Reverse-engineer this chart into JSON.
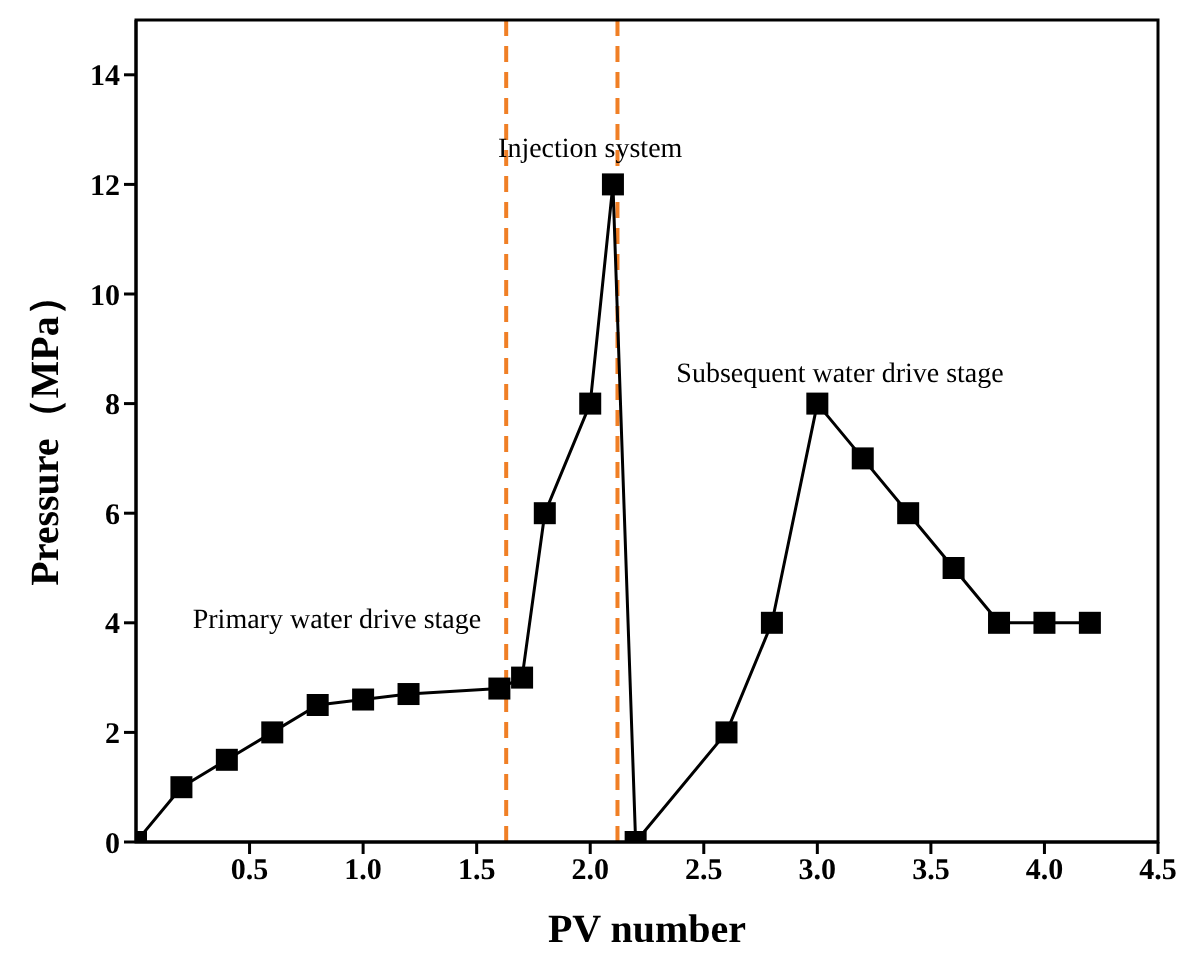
{
  "chart_data": {
    "type": "line",
    "xlabel": "PV number",
    "ylabel": "Pressure（MPa）",
    "x": [
      0,
      0.2,
      0.4,
      0.6,
      0.8,
      1.0,
      1.2,
      1.6,
      1.7,
      1.8,
      2.0,
      2.1,
      2.2,
      2.6,
      2.8,
      3.0,
      3.2,
      3.4,
      3.6,
      3.8,
      4.0,
      4.2
    ],
    "series": [
      {
        "color": "#000000",
        "values": [
          0,
          1,
          1.5,
          2,
          2.5,
          2.6,
          2.7,
          2.8,
          3,
          6,
          8,
          12,
          0,
          2,
          4,
          8,
          7,
          6,
          5,
          4,
          4,
          4
        ]
      }
    ],
    "xlim": [
      0,
      4.5
    ],
    "xticks": [
      0.5,
      {
        "value": 1,
        "label": "1.0"
      },
      1.5,
      {
        "value": 2,
        "label": "2.0"
      },
      2.5,
      {
        "value": 3,
        "label": "3.0"
      },
      3.5,
      {
        "value": 4,
        "label": "4.0"
      },
      4.5
    ],
    "ylim": [
      0,
      15
    ],
    "yticks": [
      0,
      2,
      4,
      6,
      8,
      10,
      12,
      14
    ],
    "ref_lines": [
      {
        "axis": "x",
        "value": 1.63,
        "color": "#f07f25",
        "line_style": "dashed"
      },
      {
        "axis": "x",
        "value": 2.12,
        "color": "#f07f25",
        "line_style": "dashed"
      }
    ],
    "annotations": [
      "Primary water drive stage",
      "Injection system",
      "Subsequent water drive stage"
    ],
    "marker": "square",
    "line_style": "solid",
    "grid": false,
    "legend": false
  }
}
